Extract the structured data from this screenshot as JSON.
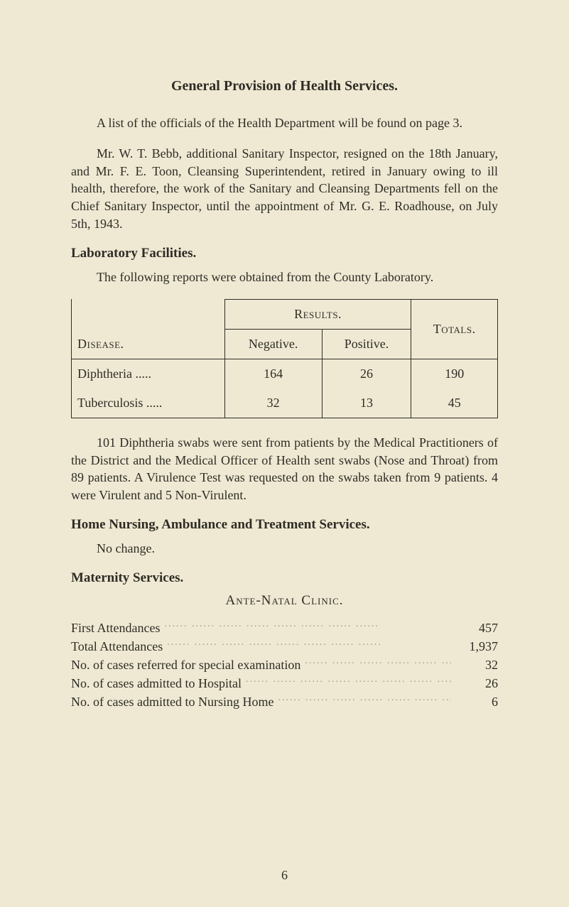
{
  "title": "General Provision of Health Services.",
  "para1": "A list of the officials of the Health Department will be found on page 3.",
  "para2": "Mr. W. T. Bebb, additional Sanitary Inspector, resigned on the 18th January, and Mr. F. E. Toon, Cleansing Superintendent, retired in January owing to ill health, therefore, the work of the Sanitary and Cleansing Departments fell on the Chief Sanitary Inspector, until the appointment of Mr. G. E. Roadhouse, on July 5th, 1943.",
  "lab_fac_head": "Laboratory Facilities.",
  "lab_fac_para": "The following reports were obtained from the County Laboratory.",
  "table": {
    "results_label": "Results.",
    "disease_label": "Disease.",
    "negative_label": "Negative.",
    "positive_label": "Positive.",
    "totals_label": "Totals.",
    "rows": [
      {
        "disease": "Diphtheria  .....",
        "negative": "164",
        "positive": "26",
        "total": "190"
      },
      {
        "disease": "Tuberculosis .....",
        "negative": "32",
        "positive": "13",
        "total": "45"
      }
    ]
  },
  "para3": "101 Diphtheria swabs were sent from patients by the Medical Practitioners of the District and the Medical Officer of Health sent swabs (Nose and Throat) from 89 patients.  A Virulence Test was requested on the swabs taken from 9 patients.  4 were Virulent and 5 Non-Virulent.",
  "home_nursing_head": "Home Nursing, Ambulance and Treatment Services.",
  "home_nursing_para": "No change.",
  "maternity_head": "Maternity Services.",
  "ante_natal_head": "Ante-Natal Clinic.",
  "stats": [
    {
      "label": "First Attendances",
      "value": "457"
    },
    {
      "label": "Total Attendances",
      "value": "1,937"
    },
    {
      "label": "No. of cases referred for special examination",
      "value": "32"
    },
    {
      "label": "No. of cases admitted to Hospital",
      "value": "26"
    },
    {
      "label": "No. of cases admitted to Nursing Home",
      "value": "6"
    }
  ],
  "page_number": "6",
  "colors": {
    "background": "#efe9d4",
    "text": "#2e2c24",
    "border": "#2e2c24"
  },
  "typography": {
    "body_fontsize_pt": 14,
    "title_fontsize_pt": 15,
    "font_family": "Times New Roman"
  }
}
